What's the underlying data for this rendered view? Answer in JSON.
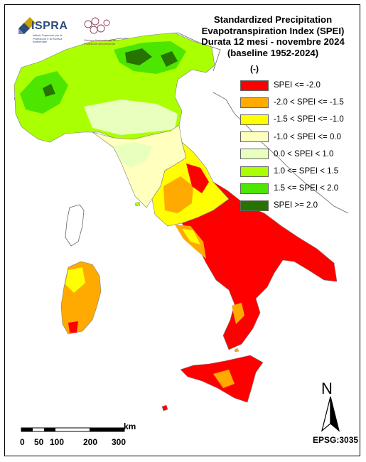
{
  "title_lines": [
    "Standardized Precipitation",
    "Evapotranspiration  Index (SPEI)",
    "Durata 12 mesi - novembre 2024",
    "(baseline 1952-2024)"
  ],
  "unit": "(-)",
  "legend": [
    {
      "label": "SPEI <= -2.0",
      "color": "#ff0000"
    },
    {
      "label": "-2.0 < SPEI <= -1.5",
      "color": "#ffaa00"
    },
    {
      "label": "-1.5 < SPEI <= -1.0",
      "color": "#ffff00"
    },
    {
      "label": "-1.0 < SPEI <= 0.0",
      "color": "#ffffbe"
    },
    {
      "label": "0.0 < SPEI < 1.0",
      "color": "#e9ffbe"
    },
    {
      "label": "1.0 <= SPEI < 1.5",
      "color": "#aaff00"
    },
    {
      "label": "1.5 <= SPEI < 2.0",
      "color": "#4ce600"
    },
    {
      "label": "SPEI >= 2.0",
      "color": "#267300"
    }
  ],
  "logo": {
    "name": "ISPRA",
    "subtitle": "Istituto Superiore per la Protezione e la Ricerca Ambientale",
    "partner_text": "Sistema Nazionale per la Protezione dell'Ambiente"
  },
  "scale_bar": {
    "unit": "km",
    "tick_labels": [
      "0",
      "50",
      "100",
      "200",
      "300"
    ]
  },
  "north_label": "N",
  "crs": "EPSG:3035"
}
